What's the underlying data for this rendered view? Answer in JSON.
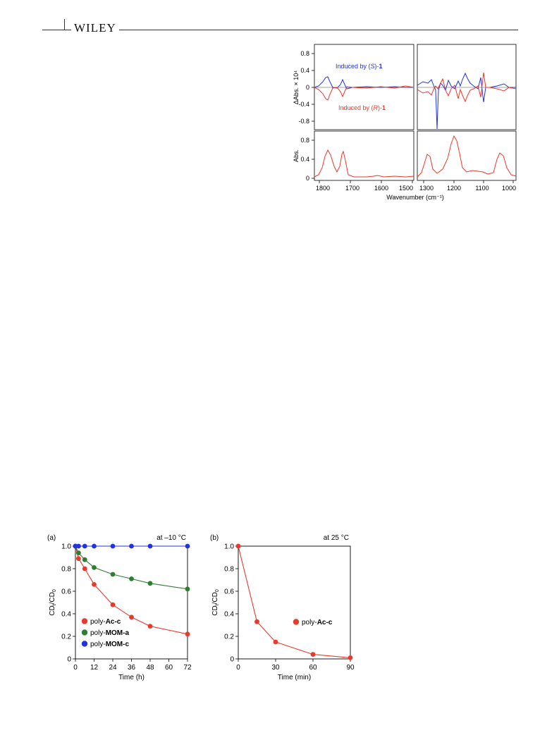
{
  "header": {
    "logo_text": "WILEY"
  },
  "colors": {
    "blue": "#2233dd",
    "red": "#e8392b",
    "green": "#2e7d32",
    "axis": "#000000"
  },
  "figure_ir": {
    "top_ylabel": "ΔAbs. × 10⁴",
    "bottom_ylabel": "Abs.",
    "xlabel": "Wavenumber (cm⁻¹)",
    "top_yticks": [
      "0.8",
      "0.4",
      "0",
      "-0.4",
      "-0.8"
    ],
    "bottom_yticks": [
      "0.8",
      "0.4",
      "0"
    ],
    "left_xticks": [
      "1800",
      "1700",
      "1600",
      "1500"
    ],
    "right_xticks": [
      "1300",
      "1200",
      "1100",
      "1000"
    ],
    "label_s": {
      "prefix": "Induced by (",
      "italic": "S",
      "suffix": ")-",
      "bold": "1"
    },
    "label_r": {
      "prefix": "Induced by (",
      "italic": "R",
      "suffix": ")-",
      "bold": "1"
    }
  },
  "chart_data": [
    {
      "type": "scatter",
      "panel": "(a)",
      "annotation": "at –10 °C",
      "xlabel": "Time (h)",
      "ylabel": "CDt/CD0",
      "xlim": [
        0,
        72
      ],
      "ylim": [
        0,
        1.0
      ],
      "xticks": [
        0,
        12,
        24,
        36,
        48,
        60,
        72
      ],
      "yticks": [
        0,
        0.2,
        0.4,
        0.6,
        0.8,
        1.0
      ],
      "legend_position": "bottom-left",
      "series": [
        {
          "name": "poly-Ac-c",
          "prefix": "poly-",
          "bold": "Ac-c",
          "color": "#e8392b",
          "x": [
            0,
            2,
            6,
            12,
            24,
            36,
            48,
            72
          ],
          "y": [
            1.0,
            0.89,
            0.8,
            0.66,
            0.48,
            0.37,
            0.29,
            0.22
          ]
        },
        {
          "name": "poly-MOM-a",
          "prefix": "poly-",
          "bold": "MOM-a",
          "color": "#2e7d32",
          "x": [
            0,
            2,
            6,
            12,
            24,
            36,
            48,
            72
          ],
          "y": [
            1.0,
            0.94,
            0.88,
            0.81,
            0.75,
            0.71,
            0.67,
            0.62
          ]
        },
        {
          "name": "poly-MOM-c",
          "prefix": "poly-",
          "bold": "MOM-c",
          "color": "#2233dd",
          "x": [
            0,
            2,
            6,
            12,
            24,
            36,
            48,
            72
          ],
          "y": [
            1.0,
            1.0,
            1.0,
            1.0,
            1.0,
            1.0,
            1.0,
            1.0
          ]
        }
      ]
    },
    {
      "type": "scatter",
      "panel": "(b)",
      "annotation": "at 25 °C",
      "xlabel": "Time (min)",
      "ylabel": "CDt/CD0",
      "xlim": [
        0,
        90
      ],
      "ylim": [
        0,
        1.0
      ],
      "xticks": [
        0,
        30,
        60,
        90
      ],
      "yticks": [
        0,
        0.2,
        0.4,
        0.6,
        0.8,
        1.0
      ],
      "legend_position": "center-right",
      "series": [
        {
          "name": "poly-Ac-c",
          "prefix": "poly-",
          "bold": "Ac-c",
          "color": "#e8392b",
          "x": [
            0,
            15,
            30,
            60,
            90
          ],
          "y": [
            1.0,
            0.33,
            0.15,
            0.04,
            0.01
          ]
        }
      ]
    }
  ]
}
